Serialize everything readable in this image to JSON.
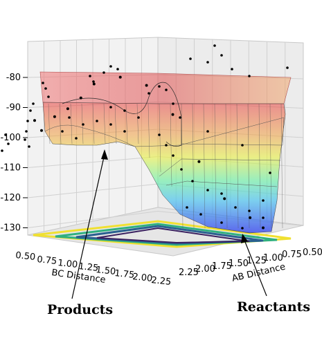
{
  "chart_data": {
    "type": "surface3d",
    "title": "",
    "xlabel": "BC Distance",
    "ylabel": "AB Distance",
    "zlabel": "",
    "x_ticks": [
      "0.50",
      "0.75",
      "1.00",
      "1.25",
      "1.50",
      "1.75",
      "2.00",
      "2.25"
    ],
    "y_ticks": [
      "0.50",
      "0.75",
      "1.00",
      "1.25",
      "1.50",
      "1.75",
      "2.00",
      "2.25"
    ],
    "z_ticks": [
      "-80",
      "-90",
      "-100",
      "-110",
      "-120",
      "-130"
    ],
    "zlim": [
      -135,
      -75
    ],
    "xlim": [
      0.5,
      2.4
    ],
    "ylim": [
      0.5,
      2.4
    ],
    "grid": true,
    "colormap": "jet (transparent surface) with viridis contour projection on floor",
    "series": [
      {
        "values_description": "potential energy surface with sampled points",
        "points": [
          {
            "x": 0.55,
            "y": 2.3,
            "z": -101
          },
          {
            "x": 0.6,
            "y": 2.2,
            "z": -104
          },
          {
            "x": 0.7,
            "y": 2.1,
            "z": -99
          },
          {
            "x": 0.8,
            "y": 2.0,
            "z": -96
          },
          {
            "x": 0.9,
            "y": 1.9,
            "z": -92
          },
          {
            "x": 1.0,
            "y": 1.8,
            "z": -87
          },
          {
            "x": 1.2,
            "y": 1.6,
            "z": -84
          },
          {
            "x": 1.4,
            "y": 1.4,
            "z": -86
          },
          {
            "x": 1.6,
            "y": 1.2,
            "z": -95
          },
          {
            "x": 1.8,
            "y": 1.0,
            "z": -110
          },
          {
            "x": 2.0,
            "y": 0.9,
            "z": -122
          },
          {
            "x": 2.2,
            "y": 0.8,
            "z": -128
          },
          {
            "x": 2.3,
            "y": 0.7,
            "z": -131
          }
        ]
      }
    ]
  },
  "annotations": {
    "products": "Products",
    "reactants": "Reactants"
  }
}
